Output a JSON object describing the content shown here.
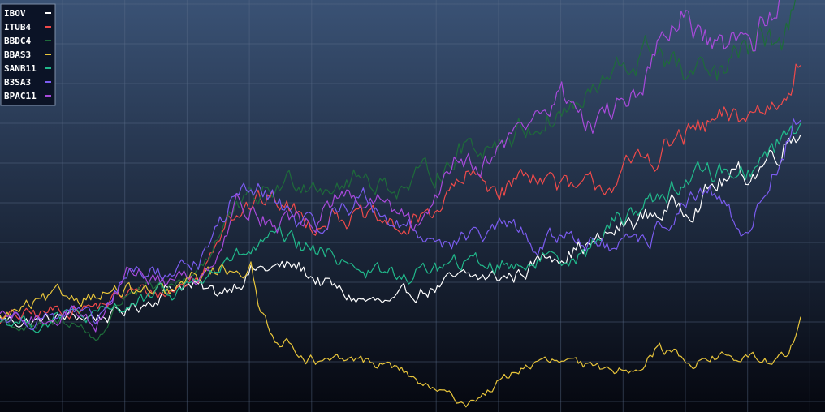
{
  "chart_data": {
    "type": "line",
    "title": "",
    "xlabel": "",
    "ylabel": "",
    "grid": true,
    "legend": "top-left",
    "ylim": [
      0.55,
      2.55
    ],
    "background": {
      "top": "#3a5275",
      "bottom": "#05070f"
    },
    "grid_color": "#5a6c8a",
    "series": [
      {
        "name": "IBOV",
        "color": "#ffffff",
        "keyframes": [
          [
            0,
            1.0
          ],
          [
            15,
            0.99
          ],
          [
            30,
            1.01
          ],
          [
            48,
            1.02
          ],
          [
            60,
            1.08
          ],
          [
            75,
            1.18
          ],
          [
            90,
            1.12
          ],
          [
            105,
            1.24
          ],
          [
            125,
            1.25
          ],
          [
            145,
            1.11
          ],
          [
            165,
            1.06
          ],
          [
            175,
            1.14
          ],
          [
            195,
            1.19
          ],
          [
            215,
            1.21
          ],
          [
            232,
            1.33
          ],
          [
            250,
            1.37
          ],
          [
            264,
            1.47
          ],
          [
            275,
            1.52
          ],
          [
            288,
            1.56
          ],
          [
            302,
            1.67
          ],
          [
            315,
            1.71
          ],
          [
            335,
            1.95
          ]
        ]
      },
      {
        "name": "ITUB4",
        "color": "#ef4a4a",
        "keyframes": [
          [
            0,
            1.0
          ],
          [
            15,
            1.02
          ],
          [
            30,
            1.06
          ],
          [
            40,
            1.06
          ],
          [
            55,
            1.13
          ],
          [
            70,
            1.13
          ],
          [
            85,
            1.22
          ],
          [
            95,
            1.54
          ],
          [
            115,
            1.58
          ],
          [
            130,
            1.47
          ],
          [
            140,
            1.53
          ],
          [
            155,
            1.47
          ],
          [
            170,
            1.43
          ],
          [
            180,
            1.52
          ],
          [
            195,
            1.68
          ],
          [
            210,
            1.64
          ],
          [
            225,
            1.73
          ],
          [
            240,
            1.6
          ],
          [
            255,
            1.67
          ],
          [
            270,
            1.77
          ],
          [
            285,
            1.88
          ],
          [
            300,
            1.94
          ],
          [
            312,
            1.98
          ],
          [
            325,
            2.06
          ],
          [
            335,
            2.32
          ]
        ]
      },
      {
        "name": "BBDC4",
        "color": "#1e6b3a",
        "keyframes": [
          [
            0,
            1.0
          ],
          [
            15,
            0.94
          ],
          [
            30,
            1.0
          ],
          [
            40,
            0.9
          ],
          [
            55,
            1.16
          ],
          [
            70,
            1.11
          ],
          [
            85,
            1.28
          ],
          [
            95,
            1.48
          ],
          [
            110,
            1.6
          ],
          [
            125,
            1.69
          ],
          [
            140,
            1.67
          ],
          [
            155,
            1.68
          ],
          [
            170,
            1.64
          ],
          [
            180,
            1.7
          ],
          [
            195,
            1.84
          ],
          [
            210,
            1.88
          ],
          [
            225,
            1.96
          ],
          [
            245,
            2.06
          ],
          [
            260,
            2.2
          ],
          [
            275,
            2.32
          ],
          [
            287,
            2.17
          ],
          [
            300,
            2.16
          ],
          [
            315,
            2.32
          ],
          [
            328,
            2.36
          ],
          [
            335,
            2.62
          ]
        ]
      },
      {
        "name": "BBAS3",
        "color": "#e8c53b",
        "keyframes": [
          [
            0,
            1.0
          ],
          [
            10,
            1.05
          ],
          [
            25,
            1.1
          ],
          [
            40,
            1.13
          ],
          [
            55,
            1.13
          ],
          [
            70,
            1.11
          ],
          [
            85,
            1.22
          ],
          [
            100,
            1.26
          ],
          [
            105,
            1.25
          ],
          [
            108,
            1.05
          ],
          [
            115,
            0.93
          ],
          [
            125,
            0.85
          ],
          [
            135,
            0.78
          ],
          [
            150,
            0.8
          ],
          [
            165,
            0.77
          ],
          [
            180,
            0.66
          ],
          [
            195,
            0.59
          ],
          [
            205,
            0.66
          ],
          [
            220,
            0.78
          ],
          [
            235,
            0.79
          ],
          [
            250,
            0.75
          ],
          [
            265,
            0.77
          ],
          [
            275,
            0.86
          ],
          [
            290,
            0.8
          ],
          [
            300,
            0.82
          ],
          [
            320,
            0.8
          ],
          [
            330,
            0.81
          ],
          [
            335,
            0.99
          ]
        ]
      },
      {
        "name": "SANB11",
        "color": "#21b98b",
        "keyframes": [
          [
            0,
            1.0
          ],
          [
            15,
            0.98
          ],
          [
            30,
            1.02
          ],
          [
            40,
            1.0
          ],
          [
            55,
            1.08
          ],
          [
            70,
            1.12
          ],
          [
            85,
            1.2
          ],
          [
            100,
            1.3
          ],
          [
            115,
            1.38
          ],
          [
            130,
            1.33
          ],
          [
            145,
            1.3
          ],
          [
            155,
            1.23
          ],
          [
            170,
            1.2
          ],
          [
            180,
            1.25
          ],
          [
            200,
            1.27
          ],
          [
            215,
            1.27
          ],
          [
            230,
            1.31
          ],
          [
            245,
            1.33
          ],
          [
            260,
            1.5
          ],
          [
            275,
            1.6
          ],
          [
            290,
            1.7
          ],
          [
            305,
            1.72
          ],
          [
            318,
            1.76
          ],
          [
            335,
            1.98
          ]
        ]
      },
      {
        "name": "B3SA3",
        "color": "#7b5cf0",
        "keyframes": [
          [
            0,
            1.0
          ],
          [
            15,
            1.02
          ],
          [
            30,
            1.04
          ],
          [
            40,
            0.97
          ],
          [
            55,
            1.24
          ],
          [
            70,
            1.22
          ],
          [
            85,
            1.3
          ],
          [
            100,
            1.64
          ],
          [
            115,
            1.58
          ],
          [
            130,
            1.43
          ],
          [
            150,
            1.6
          ],
          [
            165,
            1.48
          ],
          [
            175,
            1.42
          ],
          [
            185,
            1.39
          ],
          [
            200,
            1.39
          ],
          [
            212,
            1.45
          ],
          [
            225,
            1.36
          ],
          [
            240,
            1.42
          ],
          [
            255,
            1.34
          ],
          [
            270,
            1.35
          ],
          [
            285,
            1.56
          ],
          [
            300,
            1.58
          ],
          [
            310,
            1.42
          ],
          [
            320,
            1.6
          ],
          [
            335,
            2.02
          ]
        ]
      },
      {
        "name": "BPAC11",
        "color": "#a84adb",
        "keyframes": [
          [
            0,
            1.0
          ],
          [
            15,
            1.0
          ],
          [
            30,
            1.04
          ],
          [
            40,
            0.98
          ],
          [
            55,
            1.24
          ],
          [
            70,
            1.18
          ],
          [
            85,
            1.22
          ],
          [
            100,
            1.58
          ],
          [
            115,
            1.48
          ],
          [
            130,
            1.46
          ],
          [
            140,
            1.58
          ],
          [
            160,
            1.56
          ],
          [
            175,
            1.42
          ],
          [
            190,
            1.8
          ],
          [
            205,
            1.78
          ],
          [
            220,
            1.95
          ],
          [
            235,
            2.08
          ],
          [
            250,
            1.94
          ],
          [
            262,
            2.05
          ],
          [
            275,
            2.28
          ],
          [
            285,
            2.45
          ],
          [
            300,
            2.28
          ],
          [
            315,
            2.36
          ],
          [
            325,
            2.48
          ],
          [
            335,
            2.92
          ]
        ]
      }
    ]
  }
}
